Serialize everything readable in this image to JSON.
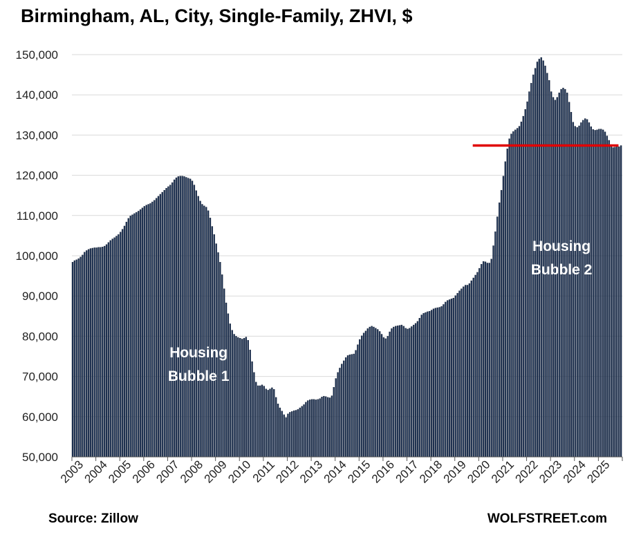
{
  "title": "Birmingham, AL, City, Single-Family, ZHVI, $",
  "source": "Source: Zillow",
  "brand": "WOLFSTREET.com",
  "colors": {
    "bar": "#1f3456",
    "bar_edge": "#0b1526",
    "reference_line": "#e00000",
    "grid": "#d9d9d9"
  },
  "chart_data": {
    "type": "bar",
    "title": "Birmingham, AL, City, Single-Family, ZHVI, $",
    "xlabel": "",
    "ylabel": "",
    "ylim": [
      50000,
      150000
    ],
    "yticks": [
      "50,000",
      "60,000",
      "70,000",
      "80,000",
      "90,000",
      "100,000",
      "110,000",
      "120,000",
      "130,000",
      "140,000",
      "150,000"
    ],
    "xticks": [
      "2003",
      "2004",
      "2005",
      "2006",
      "2007",
      "2008",
      "2009",
      "2010",
      "2011",
      "2012",
      "2013",
      "2014",
      "2015",
      "2016",
      "2017",
      "2018",
      "2019",
      "2020",
      "2021",
      "2022",
      "2023",
      "2024",
      "2025"
    ],
    "grid": "horizontal",
    "frequency": "monthly, Jan 2003 – Aug 2025",
    "series": [
      {
        "values": [
          98400,
          98800,
          99000,
          99300,
          99700,
          100200,
          100900,
          101300,
          101600,
          101800,
          101900,
          102000,
          102000,
          102100,
          102100,
          102200,
          102400,
          102800,
          103300,
          103800,
          104200,
          104500,
          104900,
          105300,
          105900,
          106600,
          107400,
          108400,
          109300,
          109900,
          110200,
          110500,
          110800,
          111100,
          111500,
          111900,
          112300,
          112600,
          112800,
          113000,
          113400,
          113800,
          114300,
          114800,
          115300,
          115800,
          116300,
          116800,
          117200,
          117600,
          118200,
          118900,
          119400,
          119700,
          119800,
          119800,
          119700,
          119500,
          119300,
          119100,
          118600,
          117600,
          116200,
          114800,
          113600,
          112800,
          112400,
          112100,
          111200,
          109400,
          107300,
          105300,
          103000,
          100800,
          98400,
          95300,
          91800,
          88300,
          85600,
          83100,
          81500,
          80500,
          80000,
          79700,
          79500,
          79300,
          79500,
          79800,
          79000,
          76600,
          73700,
          71000,
          68600,
          67700,
          67700,
          67900,
          67600,
          66900,
          66600,
          66900,
          67200,
          66800,
          64800,
          63200,
          62200,
          61400,
          60500,
          59800,
          60700,
          61100,
          61300,
          61500,
          61600,
          61800,
          62200,
          62600,
          63000,
          63600,
          64000,
          64200,
          64300,
          64300,
          64200,
          64300,
          64500,
          64900,
          65100,
          65000,
          64800,
          64700,
          65200,
          67300,
          69500,
          71000,
          72100,
          73100,
          73900,
          74700,
          75200,
          75400,
          75500,
          75600,
          76500,
          77900,
          79200,
          80100,
          80800,
          81300,
          81900,
          82300,
          82500,
          82300,
          82000,
          81700,
          81200,
          80500,
          79700,
          79400,
          80000,
          81100,
          81900,
          82300,
          82500,
          82600,
          82700,
          82800,
          82500,
          82000,
          81800,
          82000,
          82400,
          82800,
          83200,
          83700,
          84500,
          85300,
          85700,
          85900,
          86100,
          86200,
          86500,
          86800,
          87000,
          87100,
          87200,
          87400,
          87900,
          88500,
          88900,
          89100,
          89300,
          89500,
          90100,
          90700,
          91300,
          91800,
          92300,
          92700,
          92700,
          93100,
          93800,
          94500,
          95200,
          95900,
          96900,
          97900,
          98600,
          98500,
          98200,
          98200,
          99200,
          102500,
          106000,
          109700,
          113200,
          116300,
          119800,
          123400,
          126600,
          129100,
          130300,
          130900,
          131300,
          131700,
          132200,
          133300,
          134700,
          136400,
          138300,
          140800,
          142900,
          145000,
          146600,
          148200,
          148900,
          149300,
          148500,
          147200,
          145400,
          143600,
          140800,
          139400,
          138700,
          139400,
          140500,
          141400,
          141700,
          141400,
          140500,
          138200,
          135700,
          133200,
          132200,
          131900,
          132300,
          133100,
          133700,
          134100,
          133900,
          133100,
          132100,
          131400,
          131200,
          131300,
          131500,
          131500,
          131300,
          130800,
          129800,
          128700,
          127400,
          126900,
          127000,
          127200,
          127100,
          127400
        ]
      }
    ],
    "reference_line": {
      "value": 127400,
      "from": "2019-10",
      "to": "2025-08"
    },
    "annotations": [
      {
        "lines": [
          "Housing",
          "Bubble 1"
        ],
        "x": "2008-04",
        "y": 73000
      },
      {
        "lines": [
          "Housing",
          "Bubble 2"
        ],
        "x": "2023-06",
        "y": 99500
      }
    ]
  }
}
